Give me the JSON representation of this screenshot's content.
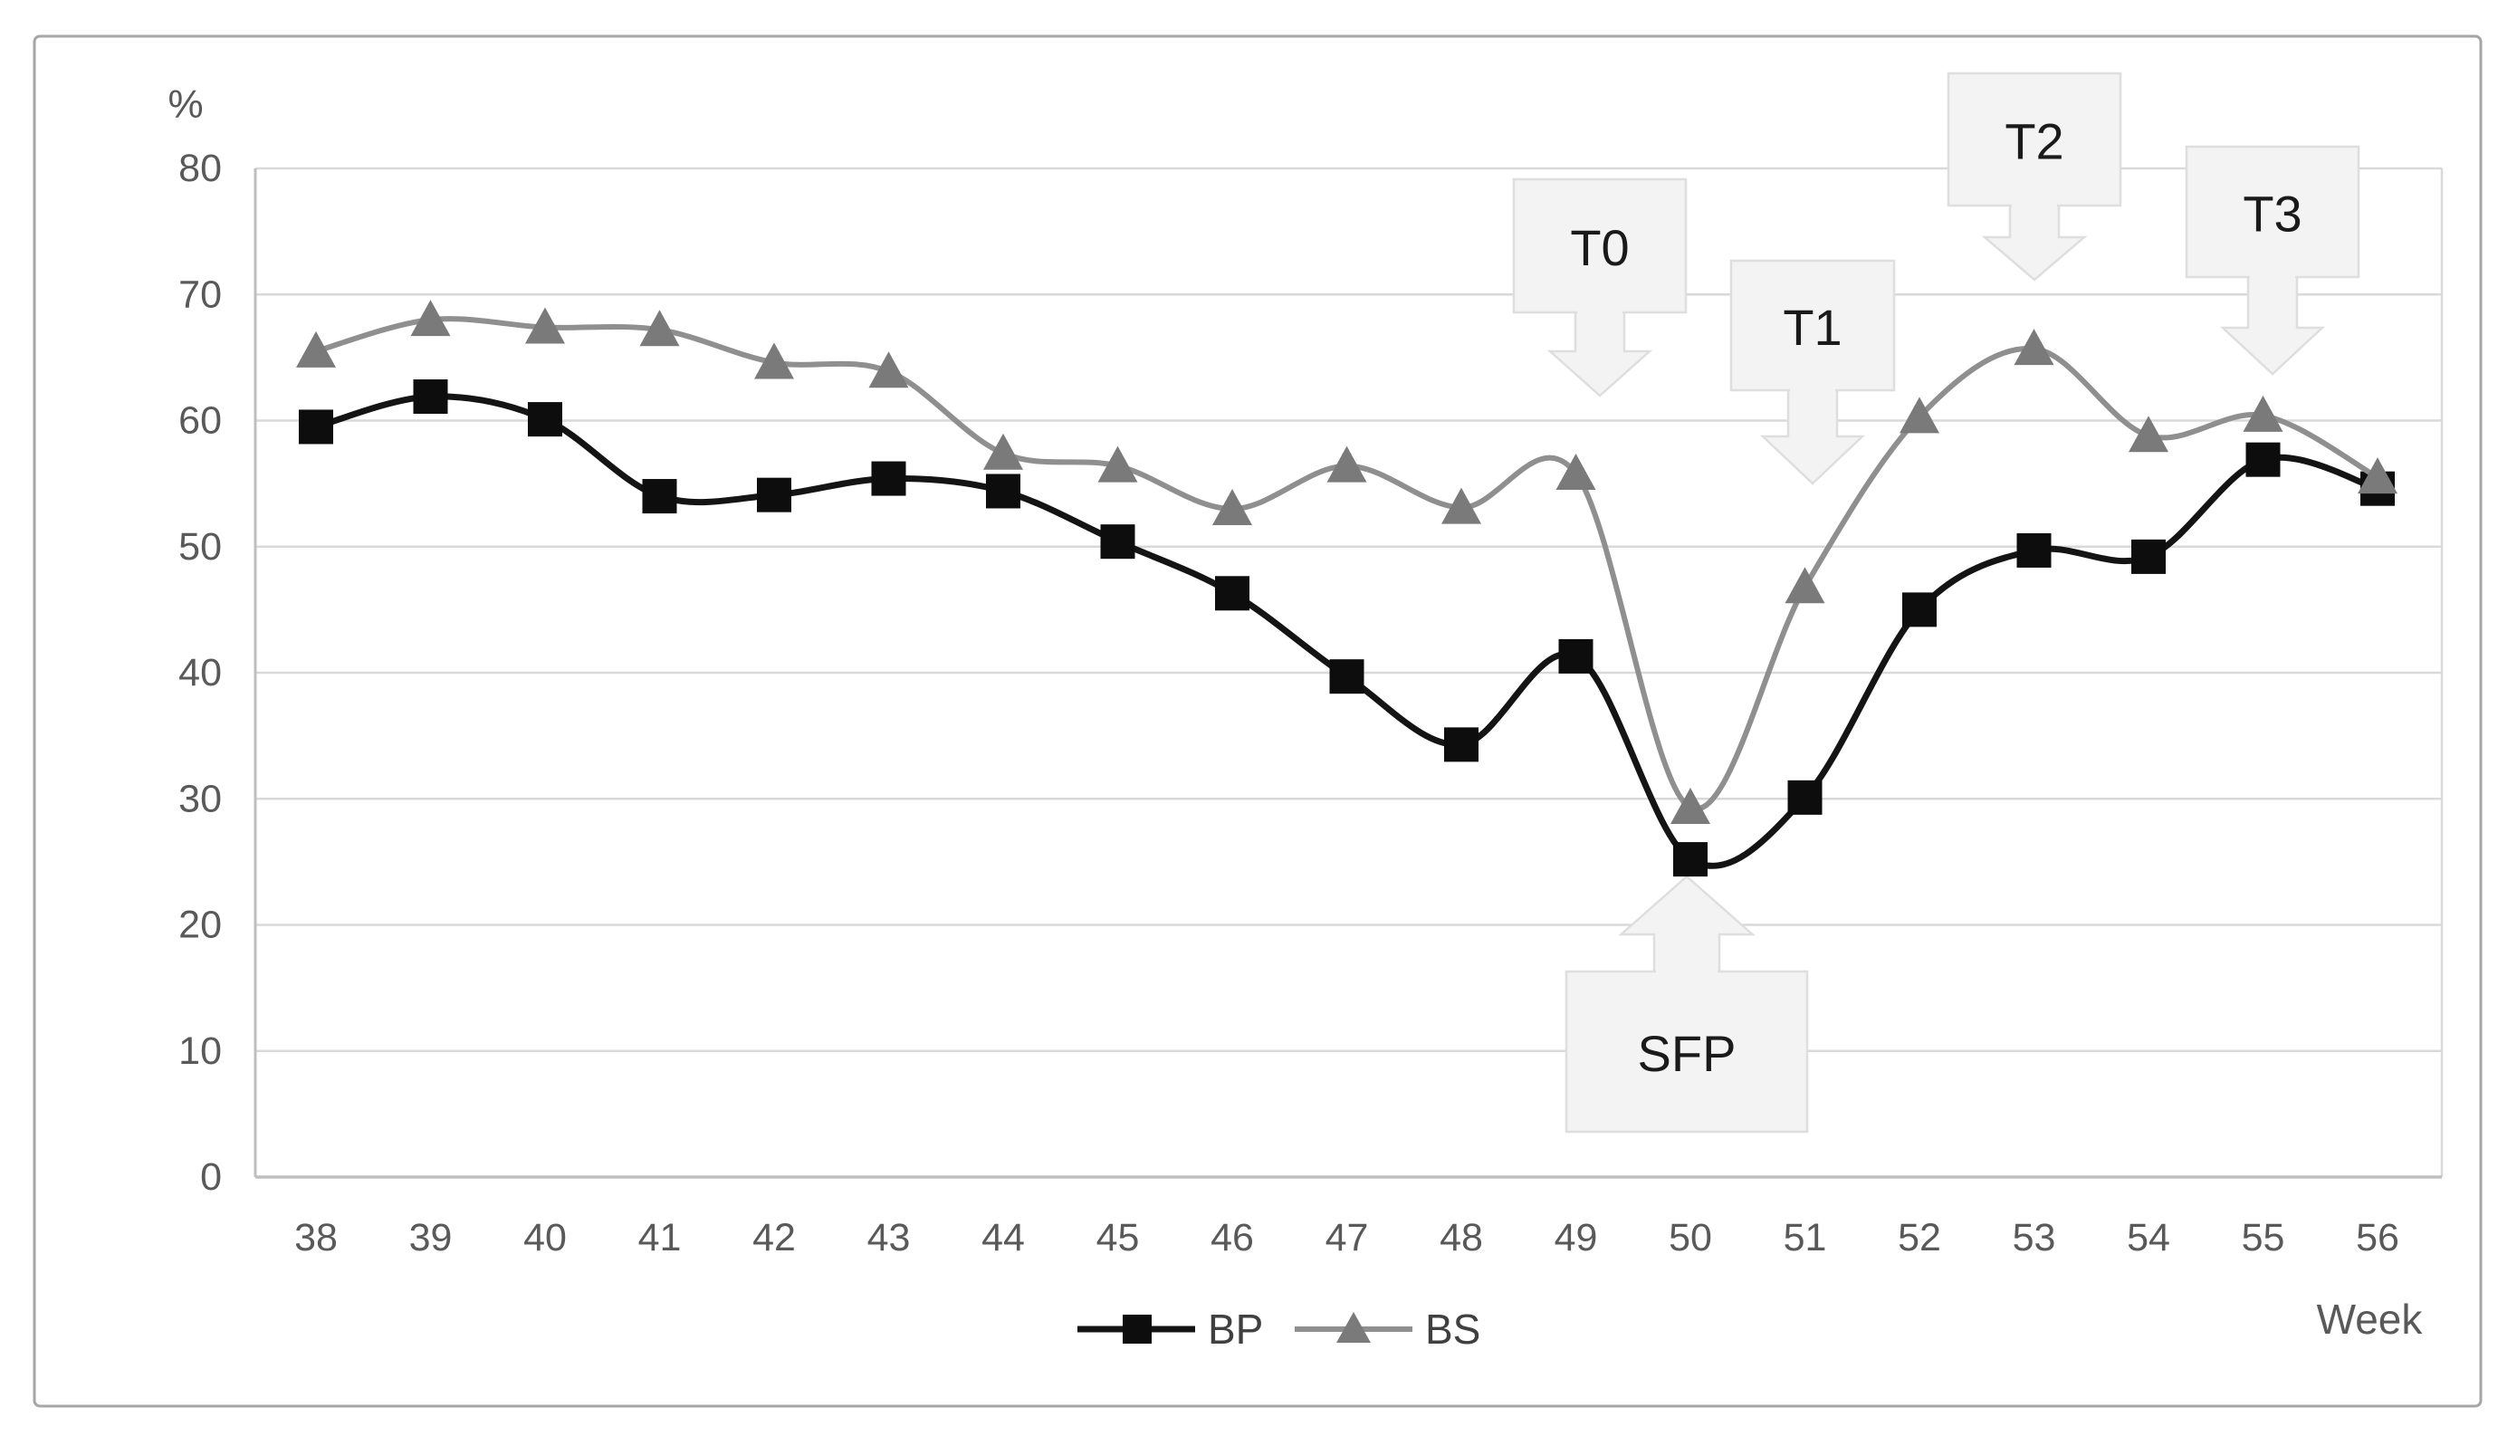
{
  "chart_data": {
    "type": "line",
    "line_style": "smoothed",
    "x": [
      38,
      39,
      40,
      41,
      42,
      43,
      44,
      45,
      46,
      47,
      48,
      49,
      50,
      51,
      52,
      53,
      54,
      55,
      56
    ],
    "series": [
      {
        "name": "BP",
        "marker": "square",
        "values": [
          59.5,
          61.9,
          60.1,
          54.0,
          54.1,
          55.4,
          54.4,
          50.4,
          46.3,
          39.7,
          34.3,
          41.3,
          25.2,
          30.1,
          45.0,
          49.7,
          49.2,
          56.9,
          54.6
        ]
      },
      {
        "name": "BS",
        "marker": "triangle",
        "values": [
          65.5,
          68.0,
          67.4,
          67.2,
          64.6,
          63.9,
          57.4,
          56.4,
          53.0,
          56.4,
          53.1,
          55.8,
          29.3,
          46.8,
          60.3,
          65.7,
          58.8,
          60.4,
          55.5
        ]
      }
    ],
    "title": "",
    "xlabel": "Week",
    "ylabel": "%",
    "ylim": [
      0,
      80
    ],
    "ytick_step": 10,
    "yticks": [
      0,
      10,
      20,
      30,
      40,
      50,
      60,
      70,
      80
    ],
    "grid": "horizontal",
    "legend_position": "bottom-center",
    "annotations": [
      {
        "label": "T0",
        "direction": "down",
        "anchor_week": 49
      },
      {
        "label": "T1",
        "direction": "down",
        "anchor_week": 51
      },
      {
        "label": "T2",
        "direction": "down",
        "anchor_week": 53
      },
      {
        "label": "T3",
        "direction": "down",
        "anchor_week": 55
      },
      {
        "label": "SFP",
        "direction": "up",
        "anchor_week": 50
      }
    ]
  },
  "colors": {
    "bp_line": "#141414",
    "bp_marker": "#0d0d0d",
    "bs_line": "#8f8f8f",
    "bs_marker": "#7a7a7a",
    "grid": "#d9d9d9",
    "axis": "#bfbfbf",
    "tick_text": "#595959",
    "legend_text": "#404040",
    "annotation_fill": "#f3f3f3",
    "annotation_border": "#dedede",
    "annotation_text": "#1a1a1a",
    "frame": "#a6a6a6",
    "background": "#ffffff"
  }
}
